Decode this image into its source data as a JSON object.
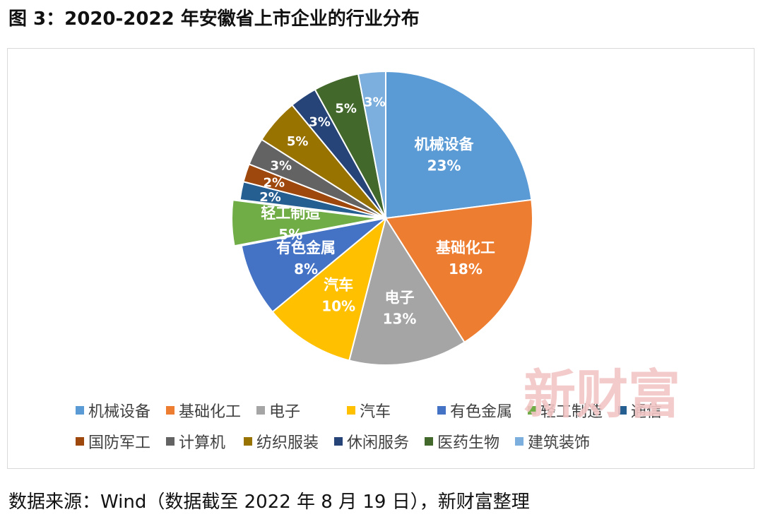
{
  "title": "图 3：2020-2022 年安徽省上市企业的行业分布",
  "watermark": "新财富",
  "source": "数据来源：Wind（数据截至 2022 年 8 月 19 日），新财富整理",
  "chart_data": {
    "type": "pie",
    "title": "",
    "slices": [
      {
        "label": "机械设备",
        "value": 23,
        "display": "23%",
        "color": "#5b9bd5",
        "show_label": true
      },
      {
        "label": "基础化工",
        "value": 18,
        "display": "18%",
        "color": "#ed7d31",
        "show_label": true
      },
      {
        "label": "电子",
        "value": 13,
        "display": "13%",
        "color": "#a5a5a5",
        "show_label": true
      },
      {
        "label": "汽车",
        "value": 10,
        "display": "10%",
        "color": "#ffc000",
        "show_label": true
      },
      {
        "label": "有色金属",
        "value": 8,
        "display": "8%",
        "color": "#4472c4",
        "show_label": true
      },
      {
        "label": "轻工制造",
        "value": 5,
        "display": "5%",
        "color": "#70ad47",
        "show_label": true,
        "exploded": true
      },
      {
        "label": "通信",
        "value": 2,
        "display": "2%",
        "color": "#255e91",
        "show_label": false
      },
      {
        "label": "国防军工",
        "value": 2,
        "display": "2%",
        "color": "#9e480e",
        "show_label": false
      },
      {
        "label": "计算机",
        "value": 3,
        "display": "3%",
        "color": "#636363",
        "show_label": false
      },
      {
        "label": "纺织服装",
        "value": 5,
        "display": "5%",
        "color": "#997300",
        "show_label": false
      },
      {
        "label": "休闲服务",
        "value": 3,
        "display": "3%",
        "color": "#264478",
        "show_label": false
      },
      {
        "label": "医药生物",
        "value": 5,
        "display": "5%",
        "color": "#43682b",
        "show_label": false
      },
      {
        "label": "建筑装饰",
        "value": 3,
        "display": "3%",
        "color": "#7cafdd",
        "show_label": false
      }
    ],
    "legend_position": "bottom"
  }
}
